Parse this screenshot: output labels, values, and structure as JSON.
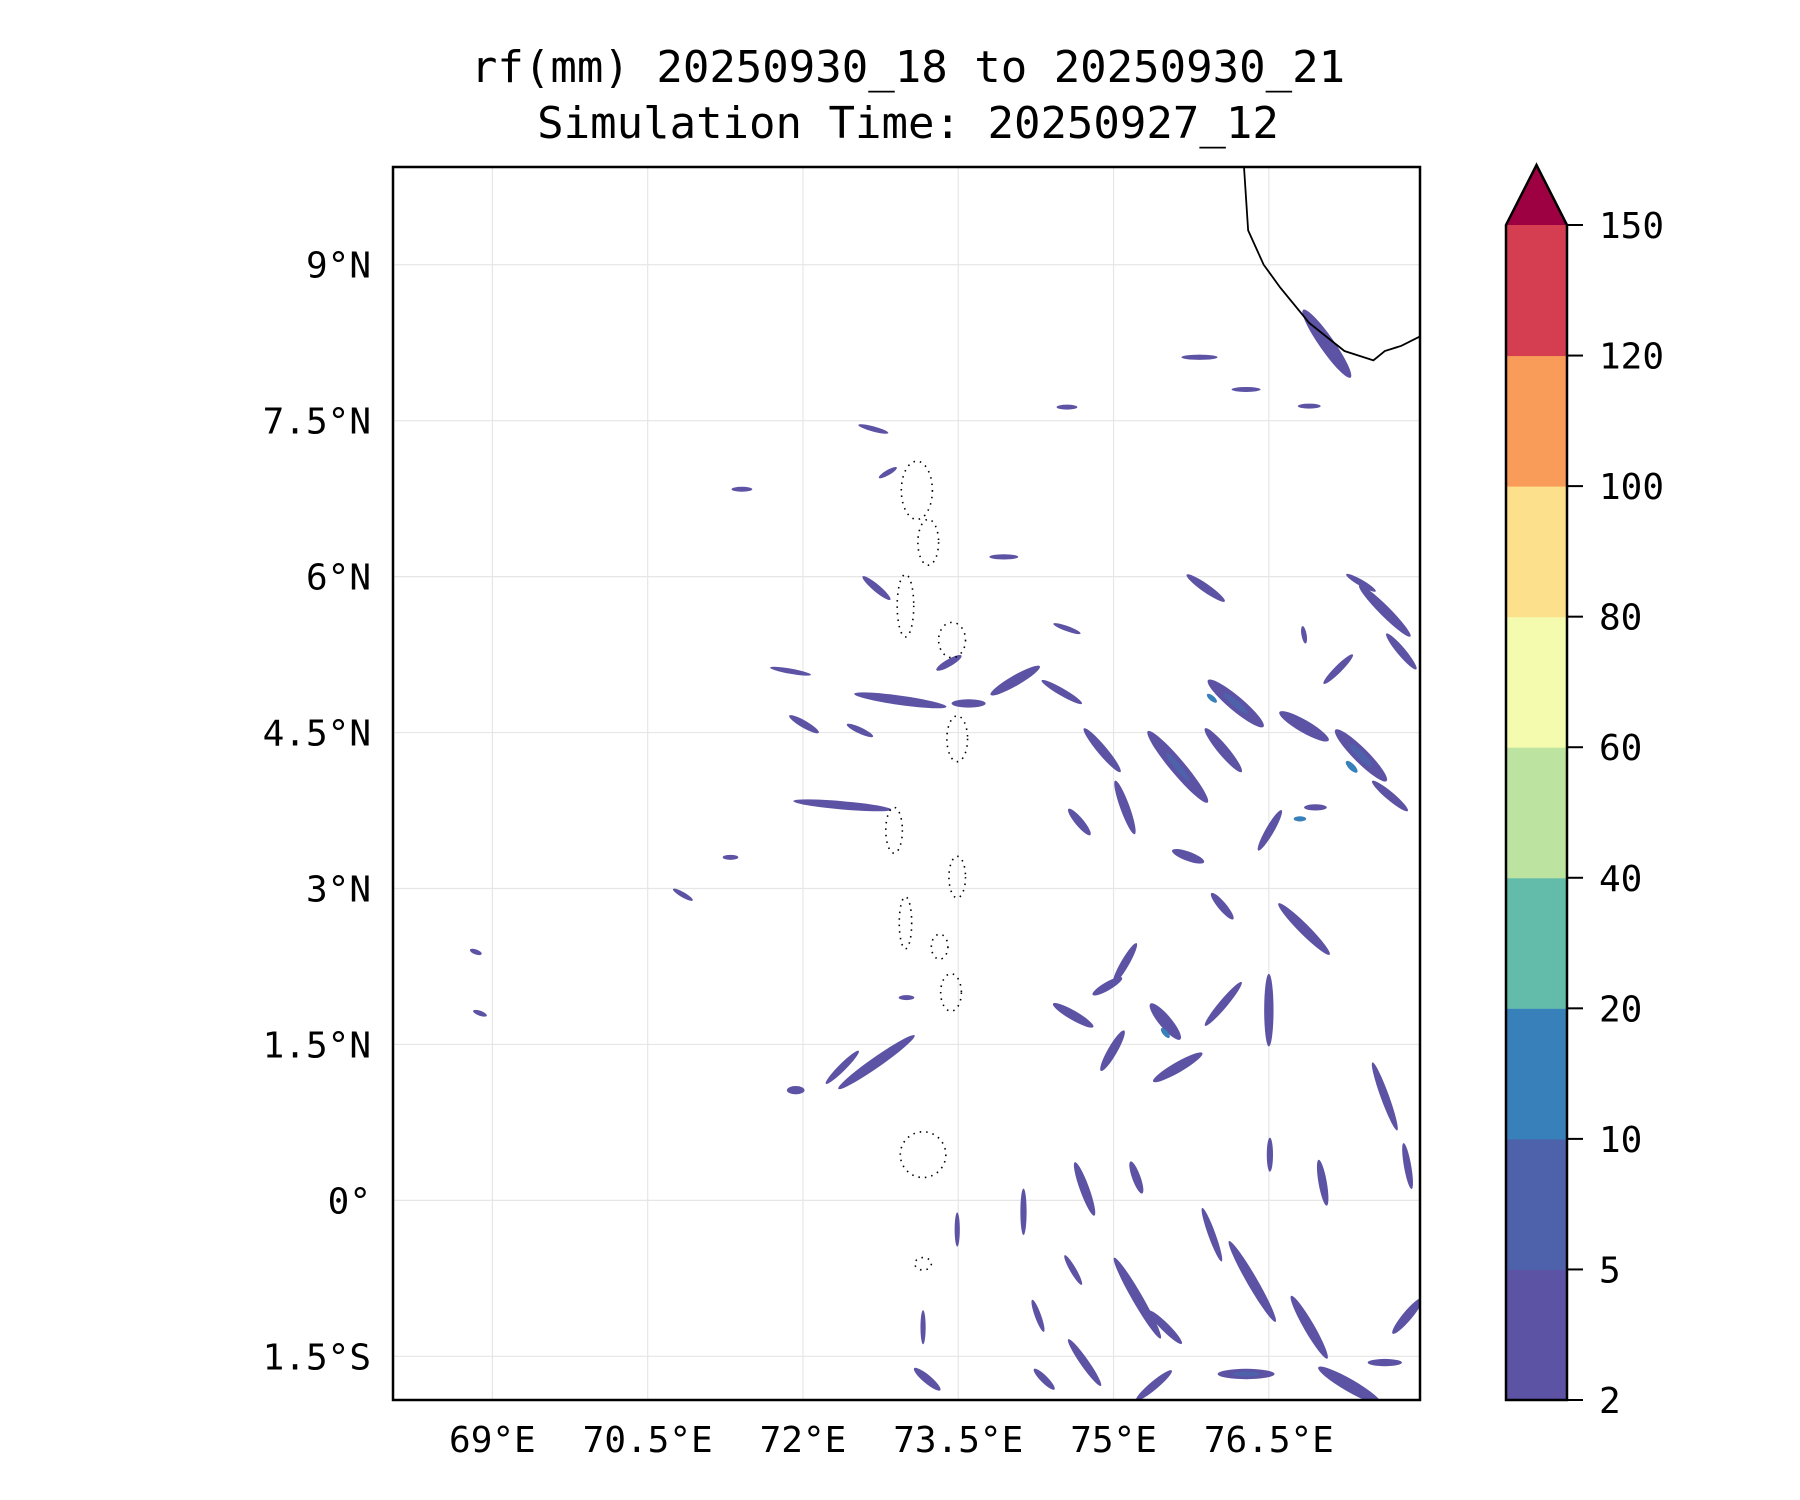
{
  "chart_data": {
    "type": "heatmap",
    "title": "rf(mm) 20250930_18 to 20250930_21",
    "subtitle": "Simulation Time: 20250927_12",
    "xlabel": "",
    "ylabel": "",
    "xlim": [
      68.04,
      77.96
    ],
    "ylim": [
      -1.92,
      9.94
    ],
    "grid": true,
    "x_ticks": [
      69,
      70.5,
      72,
      73.5,
      75,
      76.5
    ],
    "x_tick_labels": [
      "69°E",
      "70.5°E",
      "72°E",
      "73.5°E",
      "75°E",
      "76.5°E"
    ],
    "y_ticks": [
      9,
      7.5,
      6,
      4.5,
      3,
      1.5,
      0,
      -1.5
    ],
    "y_tick_labels": [
      "9°N",
      "7.5°N",
      "6°N",
      "4.5°N",
      "3°N",
      "1.5°N",
      "0°",
      "1.5°S"
    ],
    "colorbar": {
      "levels": [
        2,
        5,
        10,
        20,
        40,
        60,
        80,
        100,
        120,
        150
      ],
      "tick_labels": [
        "2",
        "5",
        "10",
        "20",
        "40",
        "60",
        "80",
        "100",
        "120",
        "150"
      ],
      "colors": [
        "#5c53a5",
        "#4e62ab",
        "#3880b9",
        "#63bca9",
        "#bce4a0",
        "#f4faae",
        "#fde08b",
        "#fa9c59",
        "#d53e50"
      ],
      "extend_max_color": "#9e0142",
      "extend": "max"
    },
    "rain_features_note_fields": [
      "lon",
      "lat",
      "length_deg",
      "width_deg",
      "orientation_deg",
      "level_index"
    ],
    "rain_features": [
      [
        77.06,
        8.24,
        0.8,
        0.14,
        55,
        0
      ],
      [
        75.83,
        8.11,
        0.35,
        0.05,
        0,
        0
      ],
      [
        76.28,
        7.8,
        0.28,
        0.04,
        0,
        0
      ],
      [
        76.89,
        7.64,
        0.22,
        0.04,
        0,
        0
      ],
      [
        74.55,
        7.63,
        0.2,
        0.04,
        0,
        0
      ],
      [
        72.68,
        7.42,
        0.3,
        0.05,
        15,
        0
      ],
      [
        71.41,
        6.84,
        0.2,
        0.04,
        0,
        0
      ],
      [
        72.82,
        7.0,
        0.2,
        0.05,
        -30,
        0
      ],
      [
        73.94,
        6.19,
        0.28,
        0.05,
        0,
        0
      ],
      [
        72.71,
        5.89,
        0.35,
        0.07,
        40,
        0
      ],
      [
        75.89,
        5.89,
        0.45,
        0.08,
        35,
        0
      ],
      [
        77.39,
        5.94,
        0.33,
        0.06,
        30,
        0
      ],
      [
        77.62,
        5.67,
        0.7,
        0.1,
        45,
        0
      ],
      [
        77.78,
        5.28,
        0.45,
        0.08,
        50,
        0
      ],
      [
        74.05,
        5.0,
        0.55,
        0.1,
        -30,
        0
      ],
      [
        74.5,
        4.89,
        0.45,
        0.07,
        30,
        0
      ],
      [
        72.94,
        4.81,
        0.9,
        0.09,
        8,
        0
      ],
      [
        73.6,
        4.78,
        0.33,
        0.08,
        0,
        0
      ],
      [
        73.41,
        5.17,
        0.28,
        0.07,
        -30,
        0
      ],
      [
        71.88,
        5.09,
        0.4,
        0.05,
        10,
        0
      ],
      [
        72.01,
        4.58,
        0.33,
        0.07,
        30,
        0
      ],
      [
        72.55,
        4.52,
        0.28,
        0.06,
        25,
        0
      ],
      [
        72.38,
        3.8,
        0.95,
        0.08,
        5,
        0
      ],
      [
        74.89,
        4.33,
        0.55,
        0.09,
        50,
        0
      ],
      [
        75.62,
        4.17,
        0.9,
        0.14,
        50,
        0
      ],
      [
        76.18,
        4.78,
        0.7,
        0.14,
        40,
        0
      ],
      [
        76.06,
        4.33,
        0.55,
        0.1,
        50,
        0
      ],
      [
        76.84,
        4.56,
        0.55,
        0.12,
        30,
        0
      ],
      [
        77.39,
        4.28,
        0.7,
        0.14,
        45,
        0
      ],
      [
        77.67,
        3.89,
        0.45,
        0.08,
        40,
        0
      ],
      [
        77.17,
        5.11,
        0.4,
        0.07,
        -45,
        0
      ],
      [
        75.11,
        3.78,
        0.55,
        0.09,
        70,
        0
      ],
      [
        74.67,
        3.64,
        0.33,
        0.08,
        50,
        0
      ],
      [
        75.72,
        3.31,
        0.33,
        0.09,
        20,
        0
      ],
      [
        76.05,
        2.83,
        0.33,
        0.08,
        50,
        0
      ],
      [
        76.84,
        2.61,
        0.7,
        0.1,
        45,
        0
      ],
      [
        76.51,
        3.56,
        0.45,
        0.08,
        -60,
        0
      ],
      [
        75.11,
        2.28,
        0.45,
        0.08,
        -60,
        0
      ],
      [
        74.94,
        2.06,
        0.33,
        0.08,
        -30,
        0
      ],
      [
        75.5,
        1.72,
        0.45,
        0.12,
        50,
        0
      ],
      [
        76.06,
        1.89,
        0.55,
        0.08,
        -50,
        0
      ],
      [
        76.5,
        1.83,
        0.7,
        0.09,
        90,
        0
      ],
      [
        74.61,
        1.78,
        0.45,
        0.09,
        30,
        0
      ],
      [
        75.62,
        1.28,
        0.55,
        0.1,
        -30,
        0
      ],
      [
        74.99,
        1.44,
        0.45,
        0.09,
        -60,
        0
      ],
      [
        72.71,
        1.33,
        0.9,
        0.1,
        -35,
        0
      ],
      [
        72.38,
        1.28,
        0.45,
        0.07,
        -45,
        0
      ],
      [
        71.93,
        1.06,
        0.17,
        0.08,
        0,
        0
      ],
      [
        77.62,
        1.0,
        0.7,
        0.08,
        70,
        0
      ],
      [
        77.84,
        0.33,
        0.45,
        0.07,
        80,
        0
      ],
      [
        74.72,
        0.11,
        0.55,
        0.09,
        70,
        0
      ],
      [
        75.22,
        0.22,
        0.33,
        0.08,
        70,
        0
      ],
      [
        77.02,
        0.17,
        0.45,
        0.08,
        80,
        0
      ],
      [
        76.51,
        0.44,
        0.33,
        0.06,
        90,
        0
      ],
      [
        74.13,
        -0.11,
        0.45,
        0.06,
        90,
        0
      ],
      [
        75.23,
        -0.94,
        0.9,
        0.1,
        60,
        0
      ],
      [
        76.34,
        -0.78,
        0.9,
        0.1,
        60,
        0
      ],
      [
        76.89,
        -1.22,
        0.7,
        0.1,
        60,
        0
      ],
      [
        77.84,
        -1.11,
        0.45,
        0.09,
        -50,
        0
      ],
      [
        74.72,
        -1.56,
        0.55,
        0.08,
        55,
        0
      ],
      [
        75.5,
        -1.22,
        0.45,
        0.08,
        45,
        0
      ],
      [
        76.28,
        -1.67,
        0.55,
        0.1,
        0,
        0
      ],
      [
        77.28,
        -1.78,
        0.7,
        0.12,
        30,
        0
      ],
      [
        75.39,
        -1.78,
        0.45,
        0.08,
        -40,
        0
      ],
      [
        73.2,
        -1.72,
        0.33,
        0.08,
        40,
        0
      ],
      [
        74.33,
        -1.72,
        0.28,
        0.07,
        45,
        0
      ],
      [
        73.49,
        -0.28,
        0.33,
        0.05,
        90,
        0
      ],
      [
        70.84,
        2.94,
        0.22,
        0.05,
        30,
        0
      ],
      [
        68.84,
        2.39,
        0.12,
        0.04,
        20,
        0
      ],
      [
        68.88,
        1.8,
        0.14,
        0.04,
        20,
        0
      ],
      [
        74.61,
        -0.67,
        0.33,
        0.06,
        60,
        0
      ],
      [
        75.95,
        -0.33,
        0.55,
        0.07,
        70,
        0
      ],
      [
        73.16,
        -1.22,
        0.33,
        0.05,
        90,
        0
      ],
      [
        74.27,
        -1.11,
        0.33,
        0.06,
        70,
        0
      ],
      [
        77.62,
        -1.56,
        0.33,
        0.07,
        0,
        0
      ],
      [
        76.84,
        5.44,
        0.17,
        0.05,
        80,
        0
      ],
      [
        76.95,
        3.78,
        0.22,
        0.06,
        0,
        0
      ],
      [
        74.55,
        5.5,
        0.28,
        0.05,
        20,
        0
      ],
      [
        73.0,
        1.95,
        0.15,
        0.04,
        0,
        0
      ],
      [
        71.3,
        3.3,
        0.15,
        0.03,
        0,
        0
      ],
      [
        76.28,
        -1.67,
        0.25,
        0.05,
        0,
        1
      ],
      [
        75.62,
        4.17,
        0.35,
        0.06,
        50,
        1
      ],
      [
        77.39,
        4.28,
        0.3,
        0.07,
        45,
        1
      ],
      [
        76.18,
        4.78,
        0.3,
        0.06,
        40,
        1
      ],
      [
        77.3,
        4.17,
        0.15,
        0.06,
        45,
        2
      ],
      [
        75.95,
        4.83,
        0.12,
        0.05,
        40,
        2
      ],
      [
        75.5,
        1.61,
        0.12,
        0.05,
        50,
        2
      ],
      [
        76.8,
        3.67,
        0.12,
        0.05,
        0,
        2
      ]
    ],
    "coastline": [
      [
        76.26,
        9.94
      ],
      [
        76.3,
        9.33
      ],
      [
        76.45,
        9.0
      ],
      [
        76.61,
        8.78
      ],
      [
        76.89,
        8.44
      ],
      [
        77.23,
        8.17
      ],
      [
        77.51,
        8.08
      ],
      [
        77.62,
        8.17
      ],
      [
        77.78,
        8.22
      ],
      [
        77.96,
        8.31
      ]
    ],
    "atolls": [
      [
        73.1,
        6.83,
        0.15,
        0.28
      ],
      [
        73.21,
        6.33,
        0.1,
        0.22
      ],
      [
        72.99,
        5.72,
        0.08,
        0.3
      ],
      [
        73.44,
        5.39,
        0.13,
        0.17
      ],
      [
        73.49,
        4.44,
        0.1,
        0.22
      ],
      [
        72.88,
        3.56,
        0.08,
        0.22
      ],
      [
        73.49,
        3.11,
        0.08,
        0.2
      ],
      [
        72.99,
        2.67,
        0.06,
        0.25
      ],
      [
        73.32,
        2.44,
        0.08,
        0.12
      ],
      [
        73.43,
        2.0,
        0.1,
        0.18
      ],
      [
        73.16,
        0.44,
        0.22,
        0.22
      ],
      [
        73.16,
        -0.61,
        0.08,
        0.06
      ]
    ]
  }
}
